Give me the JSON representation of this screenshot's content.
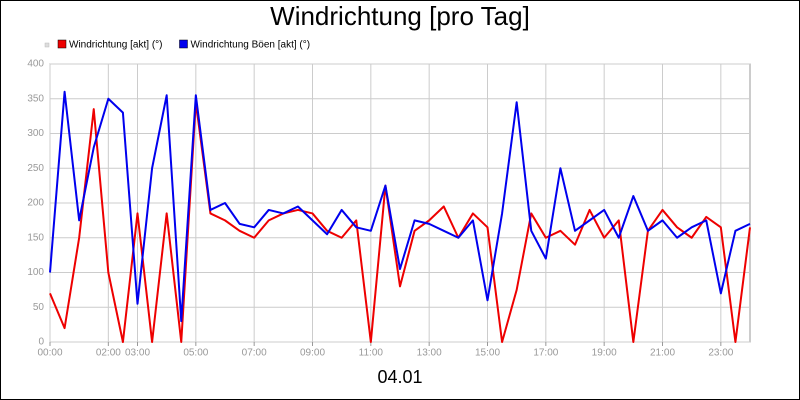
{
  "chart_data": {
    "type": "line",
    "title": "Windrichtung [pro Tag]",
    "xlabel": "04.01",
    "x": [
      0,
      0.5,
      1,
      1.5,
      2,
      2.5,
      3,
      3.5,
      4,
      4.5,
      5,
      5.5,
      6,
      6.5,
      7,
      7.5,
      8,
      8.5,
      9,
      9.5,
      10,
      10.5,
      11,
      11.5,
      12,
      12.5,
      13,
      13.5,
      14,
      14.5,
      15,
      15.5,
      16,
      16.5,
      17,
      17.5,
      18,
      18.5,
      19,
      19.5,
      20,
      20.5,
      21,
      21.5,
      22,
      22.5,
      23,
      23.5,
      24
    ],
    "series": [
      {
        "name": "Windrichtung [akt] (°)",
        "color": "#ee0000",
        "values": [
          70,
          20,
          150,
          335,
          100,
          0,
          185,
          0,
          185,
          0,
          345,
          185,
          175,
          160,
          150,
          175,
          185,
          190,
          185,
          160,
          150,
          175,
          0,
          225,
          80,
          160,
          175,
          195,
          150,
          185,
          165,
          0,
          75,
          185,
          150,
          160,
          140,
          190,
          150,
          175,
          0,
          160,
          190,
          165,
          150,
          180,
          165,
          0,
          165
        ]
      },
      {
        "name": "Windrichtung Böen [akt] (°)",
        "color": "#0000ee",
        "values": [
          100,
          360,
          175,
          280,
          350,
          330,
          55,
          250,
          355,
          30,
          355,
          190,
          200,
          170,
          165,
          190,
          185,
          195,
          175,
          155,
          190,
          165,
          160,
          225,
          105,
          175,
          170,
          160,
          150,
          175,
          60,
          185,
          345,
          160,
          120,
          250,
          160,
          175,
          190,
          150,
          210,
          160,
          175,
          150,
          165,
          175,
          70,
          160,
          170
        ]
      }
    ],
    "xlim": [
      0,
      24
    ],
    "xticks": [
      {
        "value": 0,
        "label": "00:00"
      },
      {
        "value": 2,
        "label": "02:00"
      },
      {
        "value": 3,
        "label": "03:00"
      },
      {
        "value": 5,
        "label": "05:00"
      },
      {
        "value": 7,
        "label": "07:00"
      },
      {
        "value": 9,
        "label": "09:00"
      },
      {
        "value": 11,
        "label": "11:00"
      },
      {
        "value": 13,
        "label": "13:00"
      },
      {
        "value": 15,
        "label": "15:00"
      },
      {
        "value": 17,
        "label": "17:00"
      },
      {
        "value": 19,
        "label": "19:00"
      },
      {
        "value": 21,
        "label": "21:00"
      },
      {
        "value": 23,
        "label": "23:00"
      }
    ],
    "ylim": [
      0,
      400
    ],
    "yticks": [
      0,
      50,
      100,
      150,
      200,
      250,
      300,
      350,
      400
    ],
    "grid": true
  }
}
